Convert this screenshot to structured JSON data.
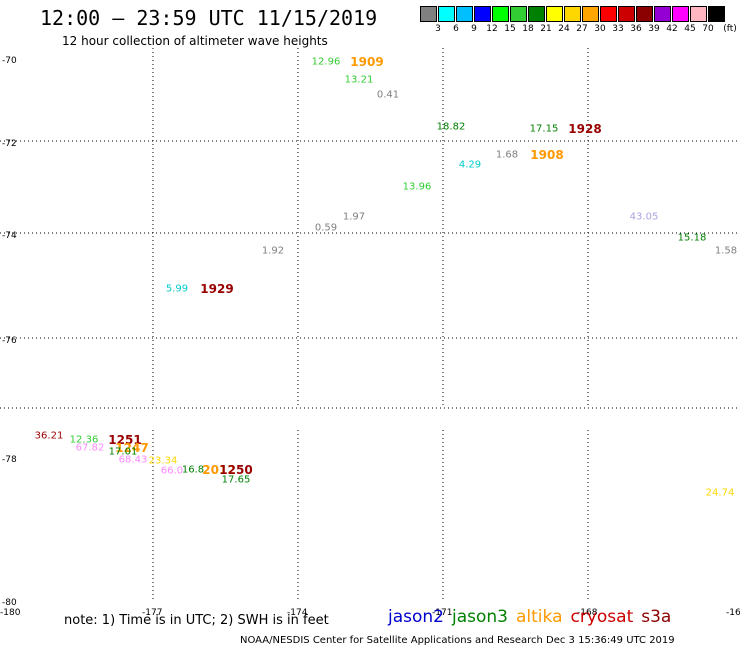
{
  "title": "12:00 — 23:59 UTC 11/15/2019",
  "subtitle": "12 hour collection of altimeter wave heights",
  "colorbar": {
    "unit": "(ft)",
    "bins": [
      {
        "label": "3",
        "color": "#808080"
      },
      {
        "label": "6",
        "color": "#00ffff"
      },
      {
        "label": "9",
        "color": "#00bfff"
      },
      {
        "label": "12",
        "color": "#0000ff"
      },
      {
        "label": "15",
        "color": "#00ff00"
      },
      {
        "label": "18",
        "color": "#32cd32"
      },
      {
        "label": "21",
        "color": "#008000"
      },
      {
        "label": "24",
        "color": "#ffff00"
      },
      {
        "label": "27",
        "color": "#ffd700"
      },
      {
        "label": "30",
        "color": "#ffa500"
      },
      {
        "label": "33",
        "color": "#ff0000"
      },
      {
        "label": "36",
        "color": "#cc0000"
      },
      {
        "label": "39",
        "color": "#8b0000"
      },
      {
        "label": "42",
        "color": "#9400d3"
      },
      {
        "label": "45",
        "color": "#ff00ff"
      },
      {
        "label": "70",
        "color": "#ffb6c1"
      },
      {
        "label": "",
        "color": "#000000"
      }
    ]
  },
  "map": {
    "lat_labels": [
      "-70",
      "-72",
      "-74",
      "-76",
      "-78",
      "-80"
    ],
    "lon_labels": [
      "-180",
      "-177",
      "-174",
      "-171",
      "-168",
      "-16"
    ],
    "observations": [
      {
        "text": "12.96",
        "color": "#33cc33"
      },
      {
        "text": "1909",
        "color": "#ff9900",
        "rev": true
      },
      {
        "text": "13.21",
        "color": "#33cc33"
      },
      {
        "text": "0.41",
        "color": "#808080"
      },
      {
        "text": "18.82",
        "color": "#008000"
      },
      {
        "text": "17.15",
        "color": "#008000"
      },
      {
        "text": "1928",
        "color": "#990000",
        "rev": true
      },
      {
        "text": "1.68",
        "color": "#808080"
      },
      {
        "text": "1908",
        "color": "#ff9900",
        "rev": true
      },
      {
        "text": "4.29",
        "color": "#00cccc"
      },
      {
        "text": "13.96",
        "color": "#33cc33"
      },
      {
        "text": "43.05",
        "color": "#b0a0e0"
      },
      {
        "text": "1.97",
        "color": "#808080"
      },
      {
        "text": "0.59",
        "color": "#808080"
      },
      {
        "text": "15.18",
        "color": "#008000"
      },
      {
        "text": "1.92",
        "color": "#808080"
      },
      {
        "text": "1.58",
        "color": "#808080"
      },
      {
        "text": "5.99",
        "color": "#00cccc"
      },
      {
        "text": "1929",
        "color": "#990000",
        "rev": true
      },
      {
        "text": "36.21",
        "color": "#990000"
      },
      {
        "text": "12.36",
        "color": "#33cc33"
      },
      {
        "text": "1251",
        "color": "#990000",
        "rev": true
      },
      {
        "text": "67.82",
        "color": "#ff88ff"
      },
      {
        "text": "1247",
        "color": "#ff9900",
        "rev": true
      },
      {
        "text": "17.01",
        "color": "#008000"
      },
      {
        "text": "68.43",
        "color": "#ff88ff"
      },
      {
        "text": "23.34",
        "color": "#ffd700"
      },
      {
        "text": "66.0",
        "color": "#ff88ff"
      },
      {
        "text": "16.8",
        "color": "#008000"
      },
      {
        "text": "2012",
        "color": "#ff9900",
        "rev": true
      },
      {
        "text": "1250",
        "color": "#990000",
        "rev": true
      },
      {
        "text": "17.65",
        "color": "#008000"
      },
      {
        "text": "24.74",
        "color": "#ffd700"
      }
    ]
  },
  "note": "note: 1) Time is in UTC; 2) SWH is in feet",
  "legend": [
    {
      "label": "jason2",
      "color": "#0000cc"
    },
    {
      "label": "jason3",
      "color": "#008000"
    },
    {
      "label": "altika",
      "color": "#ff9900"
    },
    {
      "label": "cryosat",
      "color": "#cc0000"
    },
    {
      "label": "s3a",
      "color": "#8b0000"
    }
  ],
  "footer": "NOAA/NESDIS Center for Satellite Applications and Research    Dec  3 15:36:49 UTC 2019"
}
